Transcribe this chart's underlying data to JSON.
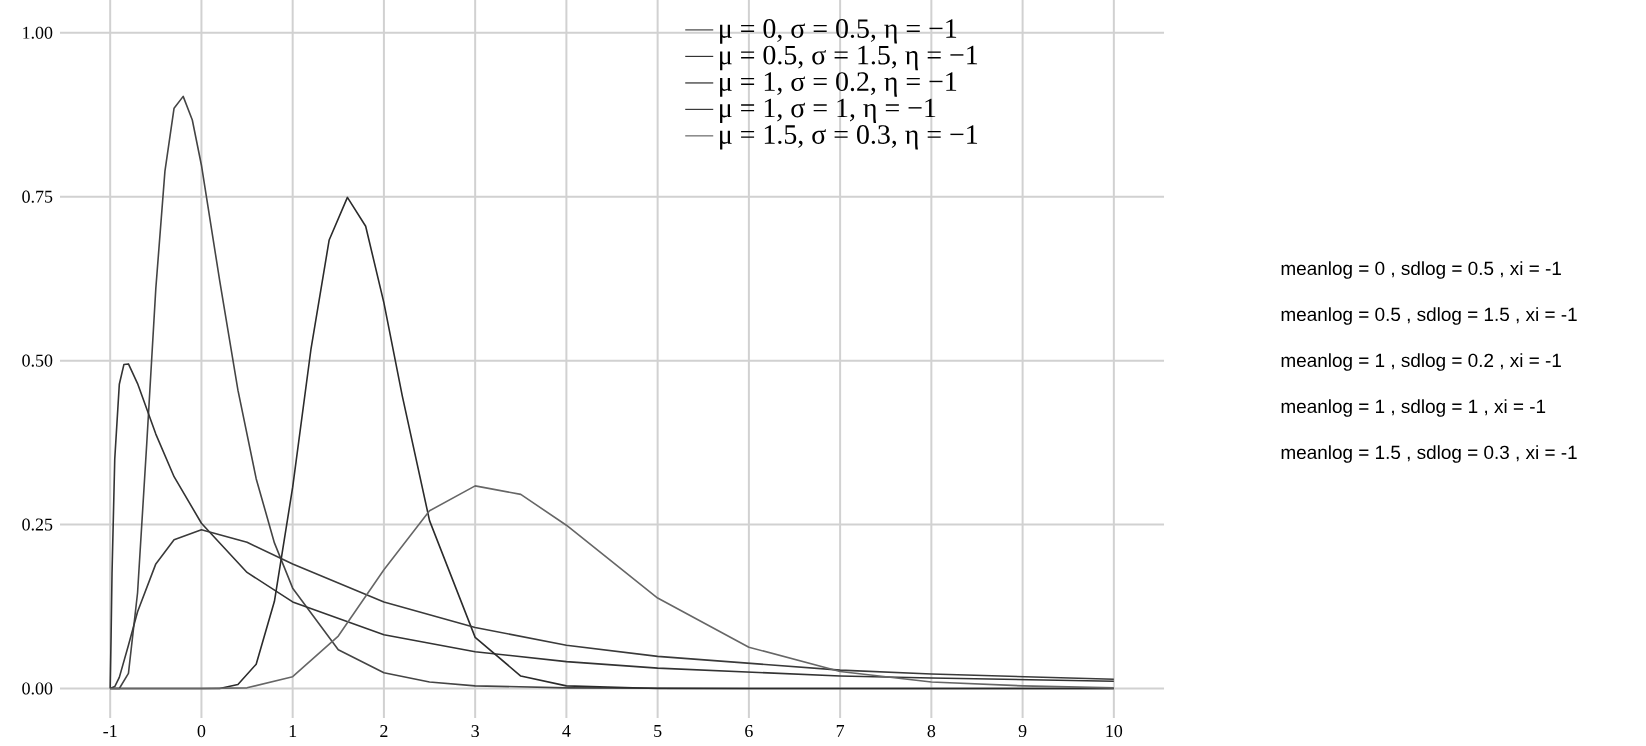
{
  "chart_data": {
    "type": "line",
    "series": [
      {
        "name": "μ = 0, σ = 0.5, η = −1",
        "color": "#444444",
        "x": [
          -1,
          -0.9,
          -0.8,
          -0.7,
          -0.6,
          -0.5,
          -0.4,
          -0.3,
          -0.2,
          -0.1,
          0,
          0.2,
          0.4,
          0.6,
          0.8,
          1,
          1.5,
          2,
          2.5,
          3,
          4,
          6,
          8,
          10
        ],
        "values": [
          0,
          0,
          0.023,
          0.146,
          0.372,
          0.61,
          0.789,
          0.885,
          0.903,
          0.867,
          0.798,
          0.622,
          0.455,
          0.32,
          0.222,
          0.153,
          0.059,
          0.024,
          0.01,
          0.004,
          0.001,
          0,
          0,
          0
        ]
      },
      {
        "name": "μ = 0.5, σ = 1.5, η = −1",
        "color": "#333333",
        "x": [
          -1,
          -0.99,
          -0.98,
          -0.95,
          -0.9,
          -0.85,
          -0.8,
          -0.7,
          -0.5,
          -0.3,
          0,
          0.5,
          1,
          2,
          3,
          4,
          5,
          7,
          8,
          10
        ],
        "values": [
          0,
          0.081,
          0.175,
          0.35,
          0.464,
          0.494,
          0.495,
          0.465,
          0.388,
          0.323,
          0.252,
          0.177,
          0.132,
          0.082,
          0.056,
          0.041,
          0.031,
          0.019,
          0.016,
          0.011
        ]
      },
      {
        "name": "μ = 1, σ = 0.2, η = −1",
        "color": "#2b2b2b",
        "x": [
          -1,
          0,
          0.2,
          0.4,
          0.6,
          0.8,
          1,
          1.2,
          1.4,
          1.6,
          1.8,
          2,
          2.2,
          2.5,
          3,
          3.5,
          4,
          5,
          10
        ],
        "values": [
          0,
          0,
          0,
          0.006,
          0.037,
          0.133,
          0.307,
          0.517,
          0.684,
          0.749,
          0.705,
          0.588,
          0.447,
          0.256,
          0.078,
          0.019,
          0.004,
          0,
          0
        ]
      },
      {
        "name": "μ = 1, σ = 1, η = −1",
        "color": "#3a3a3a",
        "x": [
          -1,
          -0.95,
          -0.9,
          -0.8,
          -0.7,
          -0.5,
          -0.3,
          0,
          0.5,
          1,
          2,
          3,
          4,
          5,
          7,
          8,
          10
        ],
        "values": [
          0,
          0.003,
          0.017,
          0.066,
          0.117,
          0.19,
          0.227,
          0.242,
          0.223,
          0.19,
          0.132,
          0.093,
          0.066,
          0.049,
          0.028,
          0.022,
          0.014
        ]
      },
      {
        "name": "μ = 1.5, σ = 0.3, η = −1",
        "color": "#666666",
        "x": [
          -1,
          0,
          0.5,
          1,
          1.5,
          2,
          2.5,
          3,
          3.5,
          4,
          5,
          6,
          7,
          8,
          9,
          10
        ],
        "values": [
          0,
          0,
          0.001,
          0.018,
          0.08,
          0.181,
          0.271,
          0.309,
          0.296,
          0.249,
          0.138,
          0.063,
          0.026,
          0.01,
          0.004,
          0.001
        ]
      }
    ],
    "xlim": [
      -1.55,
      10.55
    ],
    "ylim": [
      -0.045,
      1.05
    ],
    "xticks": [
      -1,
      0,
      1,
      2,
      3,
      4,
      5,
      6,
      7,
      8,
      9,
      10
    ],
    "yticks": [
      {
        "value": 0,
        "label": "0.00"
      },
      {
        "value": 0.25,
        "label": "0.25"
      },
      {
        "value": 0.5,
        "label": "0.50"
      },
      {
        "value": 0.75,
        "label": "0.75"
      },
      {
        "value": 1,
        "label": "1.00"
      }
    ],
    "grid": true,
    "legend": "top right",
    "line_style": "solid",
    "marker": "none",
    "annotations": [
      "meanlog = 0 , sdlog = 0.5 , xi = -1",
      "meanlog = 0.5 , sdlog = 1.5 , xi = -1",
      "meanlog = 1 , sdlog = 0.2 , xi = -1",
      "meanlog = 1 , sdlog = 1 , xi = -1",
      "meanlog = 1.5 , sdlog = 0.3 , xi = -1"
    ]
  }
}
